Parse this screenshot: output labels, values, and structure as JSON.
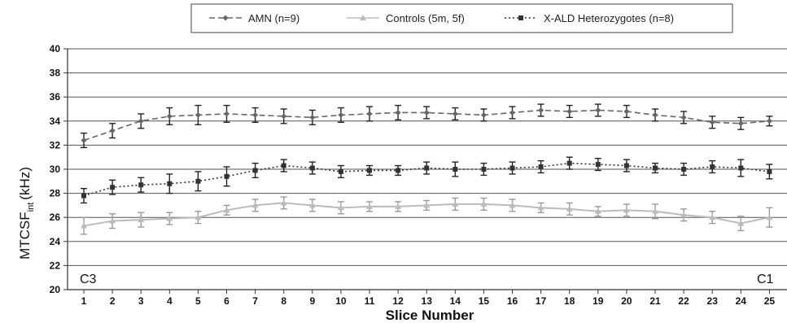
{
  "chart_data": {
    "type": "line",
    "xlabel": "Slice Number",
    "ylabel_main": "MTCSF",
    "ylabel_sub": "int",
    "ylabel_unit": "(kHz)",
    "ylim": [
      20,
      40
    ],
    "yticks": [
      20,
      22,
      24,
      26,
      28,
      30,
      32,
      34,
      36,
      38,
      40
    ],
    "x": [
      1,
      2,
      3,
      4,
      5,
      6,
      7,
      8,
      9,
      10,
      11,
      12,
      13,
      14,
      15,
      16,
      17,
      18,
      19,
      20,
      21,
      22,
      23,
      24,
      25
    ],
    "xtick_labels": [
      "1",
      "2",
      "3",
      "4",
      "5",
      "6",
      "7",
      "8",
      "9",
      "10",
      "11",
      "12",
      "13",
      "14",
      "15",
      "16",
      "17",
      "18",
      "19",
      "20",
      "21",
      "22",
      "23",
      "24",
      "25"
    ],
    "grid": "horizontal",
    "legend_position": "top",
    "annotations": {
      "left": "C3",
      "right": "C1"
    },
    "series": [
      {
        "name": "AMN (n=9)",
        "color": "#666666",
        "marker": "diamond",
        "line_style": "dashed",
        "values": [
          32.4,
          33.2,
          34.0,
          34.4,
          34.5,
          34.6,
          34.5,
          34.4,
          34.3,
          34.5,
          34.6,
          34.7,
          34.7,
          34.6,
          34.5,
          34.7,
          34.9,
          34.8,
          34.9,
          34.8,
          34.5,
          34.3,
          33.9,
          33.8,
          34.0
        ],
        "errors": [
          0.6,
          0.6,
          0.6,
          0.7,
          0.8,
          0.7,
          0.6,
          0.6,
          0.6,
          0.6,
          0.6,
          0.6,
          0.5,
          0.5,
          0.5,
          0.5,
          0.5,
          0.5,
          0.5,
          0.5,
          0.5,
          0.5,
          0.5,
          0.5,
          0.4
        ]
      },
      {
        "name": "Controls (5m, 5f)",
        "color": "#bbbbbb",
        "marker": "triangle",
        "line_style": "solid",
        "values": [
          25.3,
          25.7,
          25.8,
          25.9,
          26.0,
          26.6,
          27.0,
          27.2,
          27.0,
          26.8,
          26.9,
          26.9,
          27.0,
          27.1,
          27.1,
          27.0,
          26.8,
          26.7,
          26.5,
          26.6,
          26.5,
          26.2,
          26.0,
          25.5,
          26.0
        ]
      },
      {
        "name": "X-ALD Heterozygotes (n=8)",
        "color": "#333333",
        "marker": "square",
        "line_style": "dotted",
        "values": [
          27.8,
          28.5,
          28.7,
          28.8,
          29.0,
          29.4,
          29.9,
          30.3,
          30.1,
          29.8,
          29.9,
          29.9,
          30.1,
          30.0,
          30.0,
          30.1,
          30.2,
          30.5,
          30.4,
          30.3,
          30.1,
          30.0,
          30.2,
          30.1,
          29.8
        ],
        "errors": [
          0.6,
          0.6,
          0.6,
          0.8,
          0.8,
          0.8,
          0.6,
          0.5,
          0.5,
          0.5,
          0.4,
          0.4,
          0.5,
          0.6,
          0.5,
          0.5,
          0.5,
          0.5,
          0.5,
          0.5,
          0.4,
          0.5,
          0.5,
          0.7,
          0.6
        ]
      }
    ],
    "controls_errors": [
      0.7,
      0.6,
      0.6,
      0.5,
      0.5,
      0.4,
      0.5,
      0.5,
      0.5,
      0.5,
      0.4,
      0.4,
      0.4,
      0.5,
      0.5,
      0.5,
      0.4,
      0.5,
      0.4,
      0.5,
      0.6,
      0.5,
      0.5,
      0.6,
      0.8
    ]
  }
}
